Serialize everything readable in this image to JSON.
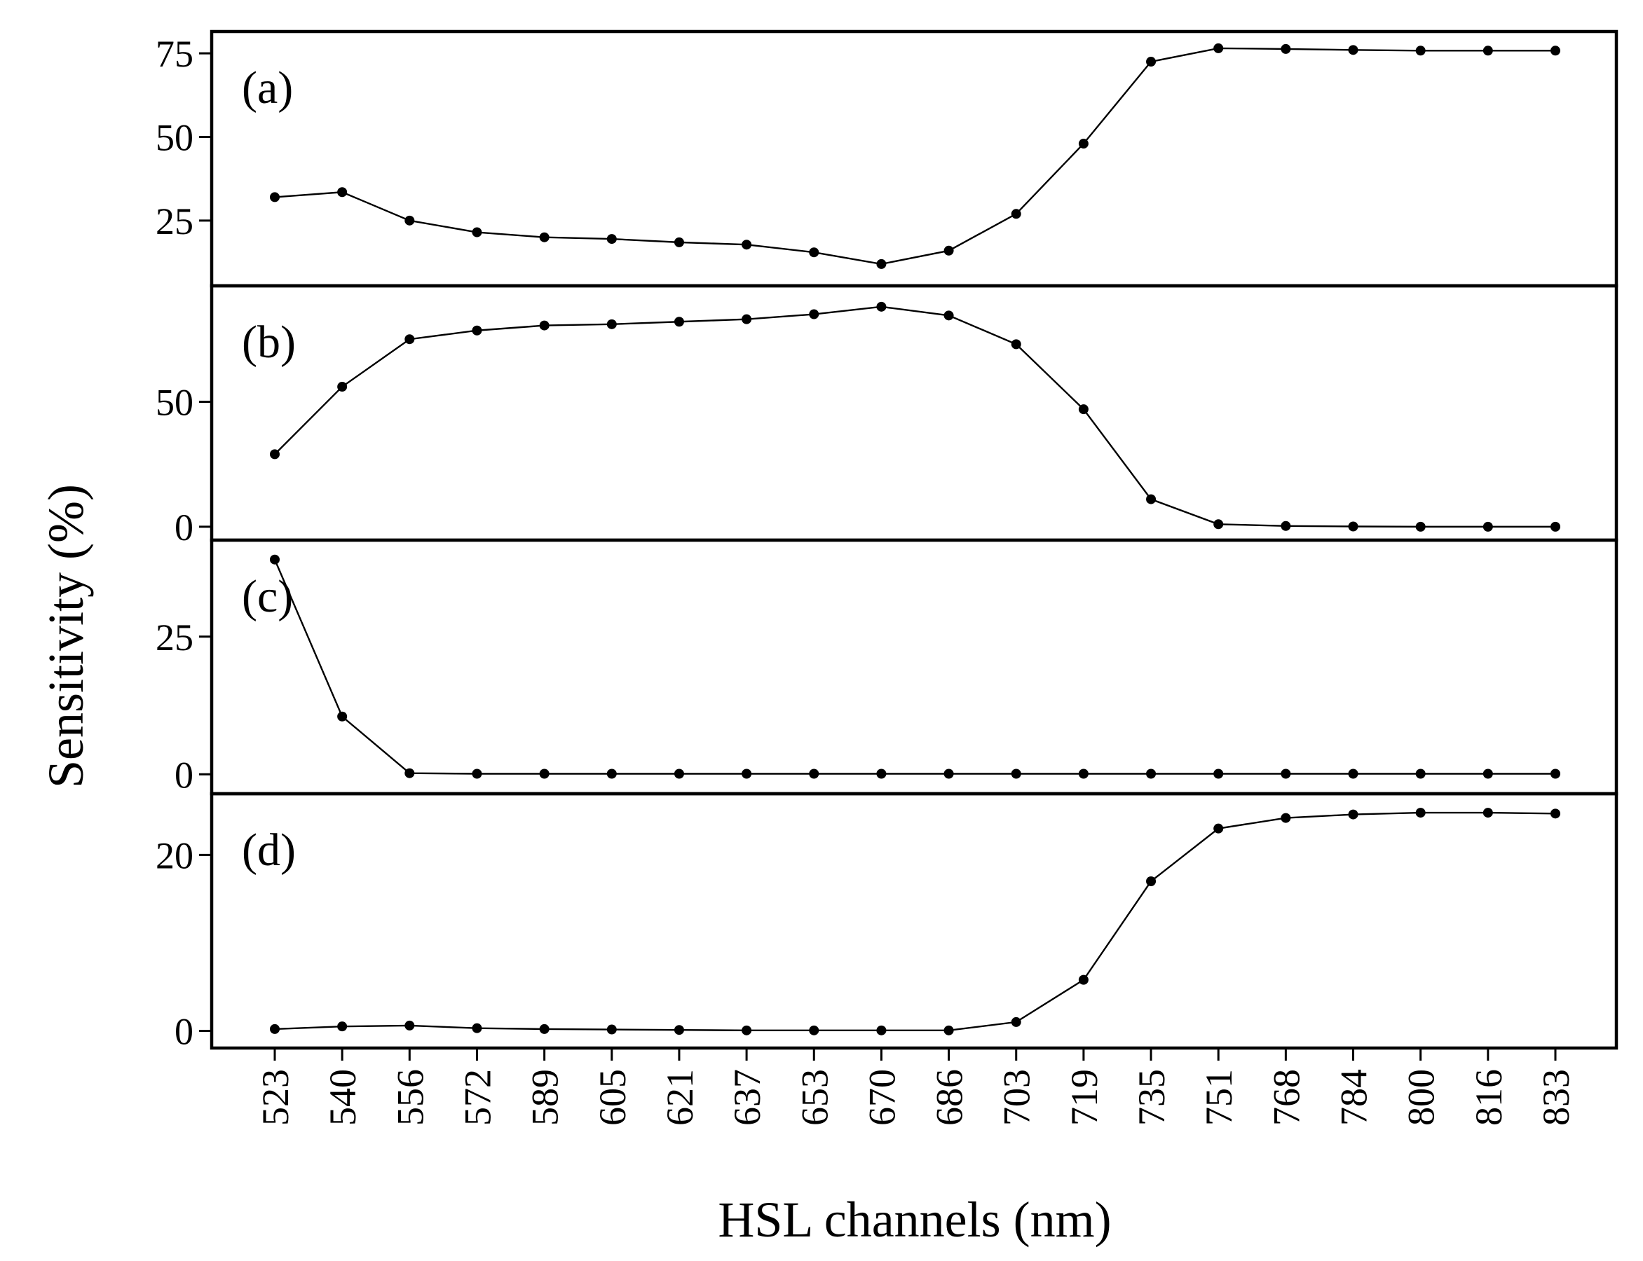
{
  "chart_data": {
    "type": "line",
    "xlabel": "HSL channels (nm)",
    "ylabel": "Sensitivity (%)",
    "categories": [
      "523",
      "540",
      "556",
      "572",
      "589",
      "605",
      "621",
      "637",
      "653",
      "670",
      "686",
      "703",
      "719",
      "735",
      "751",
      "768",
      "784",
      "800",
      "816",
      "833"
    ],
    "colors": {
      "line": "#000000",
      "marker": "#000000",
      "frame": "#000000"
    },
    "grid": false,
    "panels": [
      {
        "label": "(a)",
        "ylim": [
          8,
          79
        ],
        "yticks": [
          25,
          50,
          75
        ],
        "values": [
          32,
          33.5,
          25,
          21.5,
          20,
          19.5,
          18.5,
          17.8,
          15.5,
          12,
          16,
          27,
          48,
          72.5,
          76.5,
          76.3,
          76,
          75.8,
          75.8,
          75.8
        ]
      },
      {
        "label": "(b)",
        "ylim": [
          -2,
          93
        ],
        "yticks": [
          0,
          50
        ],
        "values": [
          29,
          56,
          75,
          78.5,
          80.5,
          81,
          82,
          83,
          85,
          88,
          84.5,
          73,
          47,
          11,
          1,
          0.3,
          0.1,
          0,
          0,
          0
        ]
      },
      {
        "label": "(c)",
        "ylim": [
          -2,
          41
        ],
        "yticks": [
          0,
          25
        ],
        "values": [
          39,
          10.5,
          0.2,
          0.1,
          0.1,
          0.1,
          0.1,
          0.1,
          0.1,
          0.1,
          0.1,
          0.1,
          0.1,
          0.1,
          0.1,
          0.1,
          0.1,
          0.1,
          0.1,
          0.1
        ]
      },
      {
        "label": "(d)",
        "ylim": [
          -1,
          26
        ],
        "yticks": [
          0,
          20
        ],
        "values": [
          0.2,
          0.5,
          0.6,
          0.3,
          0.2,
          0.15,
          0.1,
          0.05,
          0.05,
          0.05,
          0.05,
          1,
          5.8,
          17,
          23,
          24.2,
          24.6,
          24.8,
          24.8,
          24.7
        ]
      }
    ]
  }
}
